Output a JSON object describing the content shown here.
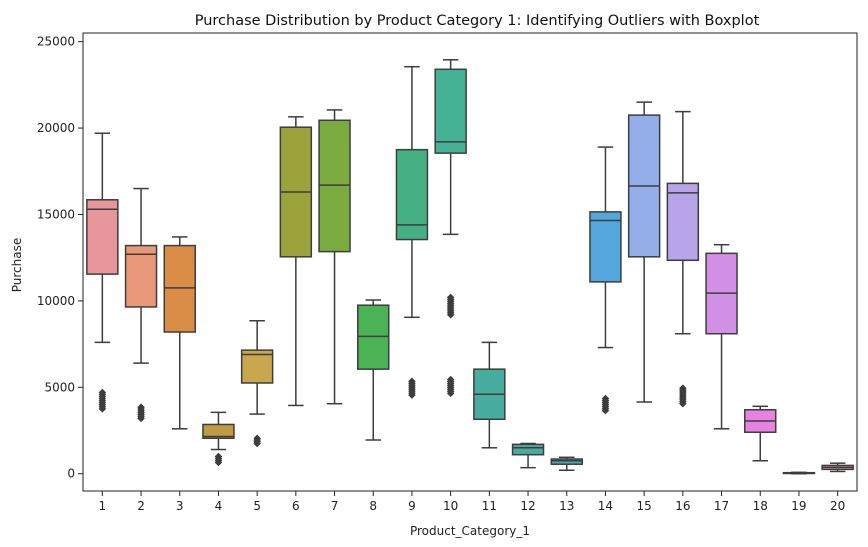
{
  "chart_data": {
    "type": "boxplot",
    "title": "Purchase Distribution by Product Category 1: Identifying Outliers with Boxplot",
    "xlabel": "Product_Category_1",
    "ylabel": "Purchase",
    "ylim": [
      -1000,
      25500
    ],
    "yticks": [
      0,
      5000,
      10000,
      15000,
      20000,
      25000
    ],
    "grid": false,
    "categories": [
      "1",
      "2",
      "3",
      "4",
      "5",
      "6",
      "7",
      "8",
      "9",
      "10",
      "11",
      "12",
      "13",
      "14",
      "15",
      "16",
      "17",
      "18",
      "19",
      "20"
    ],
    "colors": [
      "#e8969c",
      "#e99879",
      "#d98d47",
      "#c09b43",
      "#c9a74d",
      "#9da33b",
      "#7aab3f",
      "#4bb256",
      "#45b083",
      "#45b296",
      "#47ad9e",
      "#4aab9e",
      "#49a8ab",
      "#54a7dc",
      "#93aee8",
      "#b8a4e8",
      "#d291e6",
      "#e782e0",
      "#e98fd4",
      "#e993a0"
    ],
    "boxes": [
      {
        "min": 7600,
        "q1": 11550,
        "median": 15300,
        "q3": 15850,
        "max": 19700,
        "outliers": [
          3750,
          4700
        ]
      },
      {
        "min": 6400,
        "q1": 9650,
        "median": 12700,
        "q3": 13200,
        "max": 16500,
        "outliers": [
          3200,
          3850
        ]
      },
      {
        "min": 2600,
        "q1": 8200,
        "median": 10750,
        "q3": 13200,
        "max": 13700,
        "outliers": []
      },
      {
        "min": 1400,
        "q1": 2050,
        "median": 2150,
        "q3": 2850,
        "max": 3550,
        "outliers": [
          650,
          1000
        ]
      },
      {
        "min": 3450,
        "q1": 5250,
        "median": 6900,
        "q3": 7150,
        "max": 8850,
        "outliers": [
          1750,
          2050
        ]
      },
      {
        "min": 3950,
        "q1": 12550,
        "median": 16300,
        "q3": 20050,
        "max": 20650,
        "outliers": []
      },
      {
        "min": 4050,
        "q1": 12850,
        "median": 16700,
        "q3": 20450,
        "max": 21050,
        "outliers": []
      },
      {
        "min": 1950,
        "q1": 6050,
        "median": 7950,
        "q3": 9750,
        "max": 10050,
        "outliers": []
      },
      {
        "min": 9050,
        "q1": 13550,
        "median": 14400,
        "q3": 18750,
        "max": 23550,
        "outliers": [
          4550,
          5350
        ]
      },
      {
        "min": 13850,
        "q1": 18550,
        "median": 19200,
        "q3": 23400,
        "max": 23950,
        "outliers": [
          4650,
          5450,
          9200,
          10200
        ]
      },
      {
        "min": 1500,
        "q1": 3150,
        "median": 4600,
        "q3": 6050,
        "max": 7600,
        "outliers": []
      },
      {
        "min": 350,
        "q1": 1100,
        "median": 1500,
        "q3": 1700,
        "max": 1750,
        "outliers": []
      },
      {
        "min": 200,
        "q1": 550,
        "median": 750,
        "q3": 850,
        "max": 950,
        "outliers": []
      },
      {
        "min": 7300,
        "q1": 11100,
        "median": 14650,
        "q3": 15150,
        "max": 18900,
        "outliers": [
          3650,
          4350
        ]
      },
      {
        "min": 4150,
        "q1": 12550,
        "median": 16650,
        "q3": 20750,
        "max": 21500,
        "outliers": []
      },
      {
        "min": 8100,
        "q1": 12350,
        "median": 16250,
        "q3": 16800,
        "max": 20950,
        "outliers": [
          4050,
          4950
        ]
      },
      {
        "min": 2600,
        "q1": 8100,
        "median": 10450,
        "q3": 12750,
        "max": 13250,
        "outliers": []
      },
      {
        "min": 750,
        "q1": 2400,
        "median": 3050,
        "q3": 3700,
        "max": 3900,
        "outliers": []
      },
      {
        "min": 0,
        "q1": 20,
        "median": 40,
        "q3": 60,
        "max": 80,
        "outliers": []
      },
      {
        "min": 130,
        "q1": 250,
        "median": 370,
        "q3": 480,
        "max": 610,
        "outliers": []
      }
    ]
  }
}
